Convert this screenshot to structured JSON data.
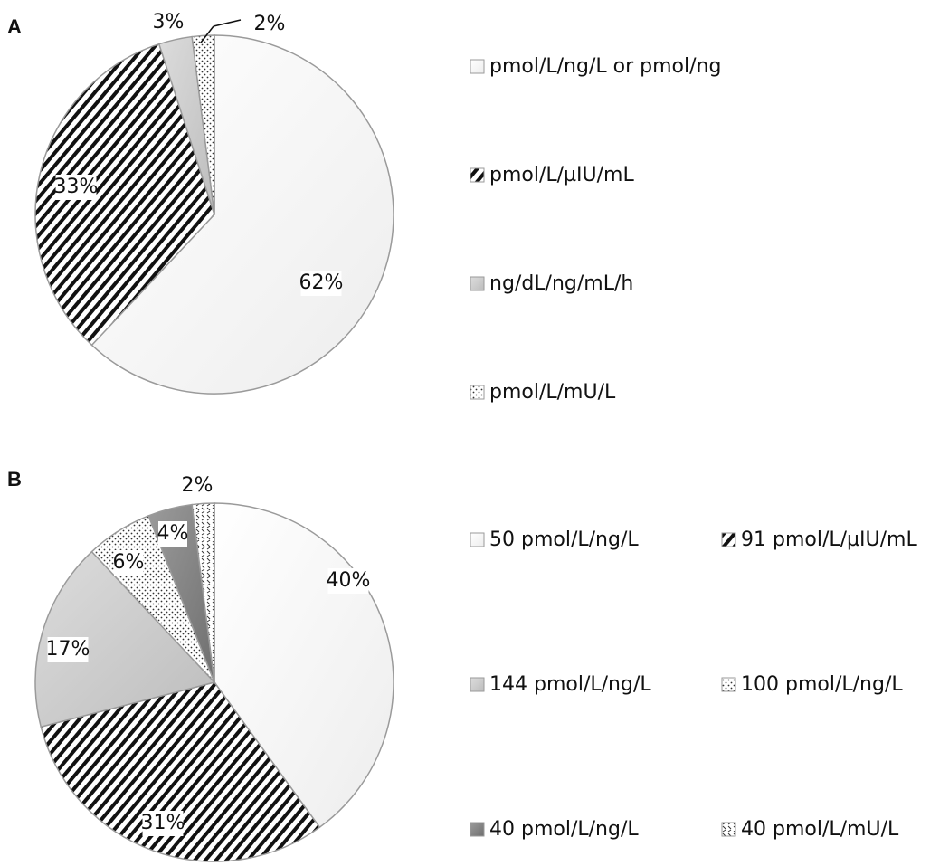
{
  "chart_data": [
    {
      "panel_label": "A",
      "type": "pie",
      "legend_placement": "right",
      "labels": [
        "pmol/L/ng/L or pmol/ng",
        "pmol/L/µIU/mL",
        "ng/dL/ng/mL/h",
        "pmol/L/mU/L"
      ],
      "values": [
        62,
        33,
        3,
        2
      ],
      "value_labels": [
        "62%",
        "33%",
        "3%",
        "2%"
      ],
      "fills": [
        "white",
        "diagonal-stripes",
        "light-gray",
        "dots"
      ]
    },
    {
      "panel_label": "B",
      "type": "pie",
      "legend_placement": "right",
      "labels": [
        "50 pmol/L/ng/L",
        "91 pmol/L/µIU/mL",
        "144 pmol/L/ng/L",
        "100 pmol/L/ng/L",
        "40 pmol/L/ng/L",
        "40 pmol/L/mU/L"
      ],
      "values": [
        40,
        31,
        17,
        6,
        4,
        2
      ],
      "value_labels": [
        "40%",
        "31%",
        "17%",
        "6%",
        "4%",
        "2%"
      ],
      "fills": [
        "white",
        "diagonal-stripes",
        "light-gray",
        "dots",
        "dark-gray",
        "dashes"
      ]
    }
  ],
  "colors": {
    "outline": "#9a9a9a",
    "light_gray": "#c9c9c9",
    "dark_gray": "#8a8a8a",
    "text": "#111111"
  }
}
